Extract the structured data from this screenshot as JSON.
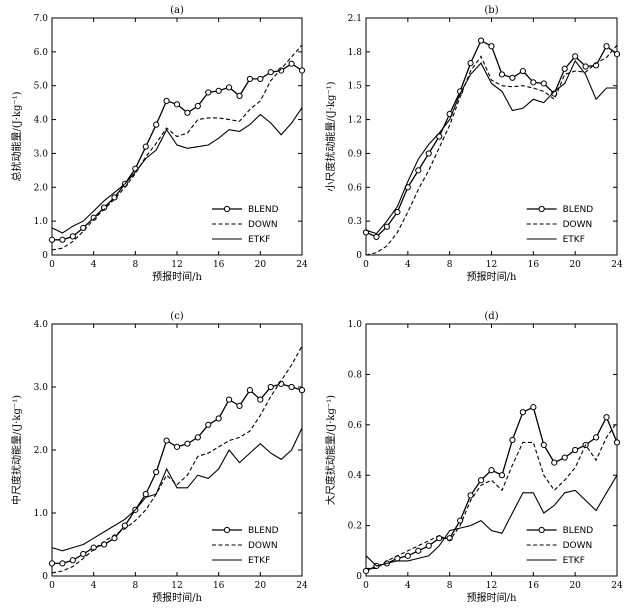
{
  "chart_data": [
    {
      "type": "line",
      "panel": "(a)",
      "xlabel": "预报时间/h",
      "ylabel": "总扰动能量/(J·kg⁻¹)",
      "xlim": [
        0,
        24
      ],
      "ylim": [
        0,
        7
      ],
      "xticks": [
        0,
        4,
        8,
        12,
        16,
        20,
        24
      ],
      "yticks": [
        0.0,
        1.0,
        2.0,
        3.0,
        4.0,
        5.0,
        6.0,
        7.0
      ],
      "ytick_labels": [
        "0",
        "1.0",
        "2.0",
        "3.0",
        "4.0",
        "5.0",
        "6.0",
        "7.0"
      ],
      "legend_position": "bottom-right",
      "x": [
        0,
        1,
        2,
        3,
        4,
        5,
        6,
        7,
        8,
        9,
        10,
        11,
        12,
        13,
        14,
        15,
        16,
        17,
        18,
        19,
        20,
        21,
        22,
        23,
        24
      ],
      "series": [
        {
          "name": "BLEND",
          "style": "solid-circle",
          "values": [
            0.45,
            0.45,
            0.55,
            0.8,
            1.1,
            1.4,
            1.7,
            2.1,
            2.55,
            3.2,
            3.85,
            4.55,
            4.45,
            4.2,
            4.4,
            4.8,
            4.85,
            4.95,
            4.7,
            5.2,
            5.2,
            5.4,
            5.45,
            5.65,
            5.45
          ]
        },
        {
          "name": "DOWN",
          "style": "dashed",
          "values": [
            0.15,
            0.2,
            0.4,
            0.7,
            1.05,
            1.35,
            1.65,
            2.0,
            2.4,
            2.9,
            3.3,
            3.75,
            3.5,
            3.6,
            4.0,
            4.05,
            4.05,
            4.0,
            3.95,
            4.3,
            4.55,
            5.15,
            5.5,
            5.85,
            6.2
          ]
        },
        {
          "name": "ETKF",
          "style": "solid",
          "values": [
            0.8,
            0.65,
            0.85,
            1.0,
            1.3,
            1.6,
            1.85,
            2.1,
            2.45,
            2.85,
            3.1,
            3.7,
            3.25,
            3.15,
            3.2,
            3.25,
            3.45,
            3.7,
            3.65,
            3.85,
            4.15,
            3.9,
            3.55,
            3.9,
            4.35
          ]
        }
      ]
    },
    {
      "type": "line",
      "panel": "(b)",
      "xlabel": "预报时间/h",
      "ylabel": "小尺度扰动能量/(J·kg⁻¹)",
      "xlim": [
        0,
        24
      ],
      "ylim": [
        0,
        2.1
      ],
      "xticks": [
        0,
        4,
        8,
        12,
        16,
        20,
        24
      ],
      "yticks": [
        0.0,
        0.3,
        0.6,
        0.9,
        1.2,
        1.5,
        1.8,
        2.1
      ],
      "ytick_labels": [
        "0",
        "0.3",
        "0.6",
        "0.9",
        "1.2",
        "1.5",
        "1.8",
        "2.1"
      ],
      "legend_position": "bottom-right",
      "x": [
        0,
        1,
        2,
        3,
        4,
        5,
        6,
        7,
        8,
        9,
        10,
        11,
        12,
        13,
        14,
        15,
        16,
        17,
        18,
        19,
        20,
        21,
        22,
        23,
        24
      ],
      "series": [
        {
          "name": "BLEND",
          "style": "solid-circle",
          "values": [
            0.2,
            0.16,
            0.25,
            0.38,
            0.6,
            0.75,
            0.9,
            1.05,
            1.25,
            1.45,
            1.7,
            1.9,
            1.85,
            1.6,
            1.57,
            1.63,
            1.53,
            1.52,
            1.43,
            1.65,
            1.76,
            1.67,
            1.68,
            1.85,
            1.78
          ]
        },
        {
          "name": "DOWN",
          "style": "dashed",
          "values": [
            0.0,
            0.02,
            0.08,
            0.2,
            0.38,
            0.58,
            0.75,
            0.95,
            1.15,
            1.4,
            1.63,
            1.76,
            1.55,
            1.5,
            1.49,
            1.5,
            1.48,
            1.45,
            1.38,
            1.6,
            1.63,
            1.62,
            1.7,
            1.75,
            1.86
          ]
        },
        {
          "name": "ETKF",
          "style": "solid",
          "values": [
            0.22,
            0.19,
            0.3,
            0.43,
            0.65,
            0.85,
            0.98,
            1.08,
            1.2,
            1.43,
            1.6,
            1.7,
            1.52,
            1.45,
            1.28,
            1.3,
            1.38,
            1.35,
            1.45,
            1.52,
            1.72,
            1.6,
            1.38,
            1.48,
            1.48
          ]
        }
      ]
    },
    {
      "type": "line",
      "panel": "(c)",
      "xlabel": "预报时间/h",
      "ylabel": "中尺度扰动能量/(J·kg⁻¹)",
      "xlim": [
        0,
        24
      ],
      "ylim": [
        0,
        4
      ],
      "xticks": [
        0,
        4,
        8,
        12,
        16,
        20,
        24
      ],
      "yticks": [
        0.0,
        1.0,
        2.0,
        3.0,
        4.0
      ],
      "ytick_labels": [
        "0",
        "1.0",
        "2.0",
        "3.0",
        "4.0"
      ],
      "legend_position": "bottom-right",
      "x": [
        0,
        1,
        2,
        3,
        4,
        5,
        6,
        7,
        8,
        9,
        10,
        11,
        12,
        13,
        14,
        15,
        16,
        17,
        18,
        19,
        20,
        21,
        22,
        23,
        24
      ],
      "series": [
        {
          "name": "BLEND",
          "style": "solid-circle",
          "values": [
            0.2,
            0.2,
            0.25,
            0.35,
            0.45,
            0.5,
            0.6,
            0.8,
            1.05,
            1.3,
            1.65,
            2.15,
            2.05,
            2.1,
            2.2,
            2.4,
            2.5,
            2.8,
            2.7,
            2.95,
            2.8,
            3.0,
            3.05,
            3.0,
            2.95
          ]
        },
        {
          "name": "DOWN",
          "style": "dashed",
          "values": [
            0.05,
            0.08,
            0.15,
            0.28,
            0.42,
            0.55,
            0.65,
            0.75,
            0.88,
            1.05,
            1.3,
            1.6,
            1.45,
            1.6,
            1.9,
            1.95,
            2.05,
            2.15,
            2.2,
            2.3,
            2.55,
            2.85,
            3.1,
            3.35,
            3.65
          ]
        },
        {
          "name": "ETKF",
          "style": "solid",
          "values": [
            0.45,
            0.4,
            0.45,
            0.5,
            0.6,
            0.7,
            0.8,
            0.9,
            1.05,
            1.25,
            1.3,
            1.7,
            1.4,
            1.4,
            1.6,
            1.55,
            1.7,
            2.0,
            1.8,
            1.95,
            2.1,
            1.95,
            1.85,
            2.0,
            2.35
          ]
        }
      ]
    },
    {
      "type": "line",
      "panel": "(d)",
      "xlabel": "预报时间/h",
      "ylabel": "大尺度扰动能量/(J·kg⁻¹)",
      "xlim": [
        0,
        24
      ],
      "ylim": [
        0,
        1.0
      ],
      "xticks": [
        0,
        4,
        8,
        12,
        16,
        20,
        24
      ],
      "yticks": [
        0.0,
        0.2,
        0.4,
        0.6,
        0.8,
        1.0
      ],
      "ytick_labels": [
        "0",
        "0.2",
        "0.4",
        "0.6",
        "0.8",
        "1.0"
      ],
      "legend_position": "bottom-right",
      "x": [
        0,
        1,
        2,
        3,
        4,
        5,
        6,
        7,
        8,
        9,
        10,
        11,
        12,
        13,
        14,
        15,
        16,
        17,
        18,
        19,
        20,
        21,
        22,
        23,
        24
      ],
      "series": [
        {
          "name": "BLEND",
          "style": "solid-circle",
          "values": [
            0.02,
            0.04,
            0.05,
            0.07,
            0.08,
            0.1,
            0.12,
            0.15,
            0.15,
            0.22,
            0.32,
            0.38,
            0.42,
            0.4,
            0.54,
            0.65,
            0.67,
            0.52,
            0.45,
            0.47,
            0.5,
            0.52,
            0.55,
            0.63,
            0.53
          ]
        },
        {
          "name": "DOWN",
          "style": "dashed",
          "values": [
            0.03,
            0.03,
            0.06,
            0.08,
            0.1,
            0.12,
            0.14,
            0.16,
            0.14,
            0.2,
            0.3,
            0.36,
            0.38,
            0.34,
            0.44,
            0.53,
            0.53,
            0.4,
            0.34,
            0.38,
            0.43,
            0.52,
            0.46,
            0.55,
            0.61
          ]
        },
        {
          "name": "ETKF",
          "style": "solid",
          "values": [
            0.08,
            0.04,
            0.05,
            0.06,
            0.06,
            0.07,
            0.08,
            0.12,
            0.18,
            0.19,
            0.2,
            0.22,
            0.18,
            0.17,
            0.25,
            0.33,
            0.33,
            0.25,
            0.28,
            0.33,
            0.34,
            0.3,
            0.26,
            0.33,
            0.4
          ]
        }
      ]
    }
  ]
}
